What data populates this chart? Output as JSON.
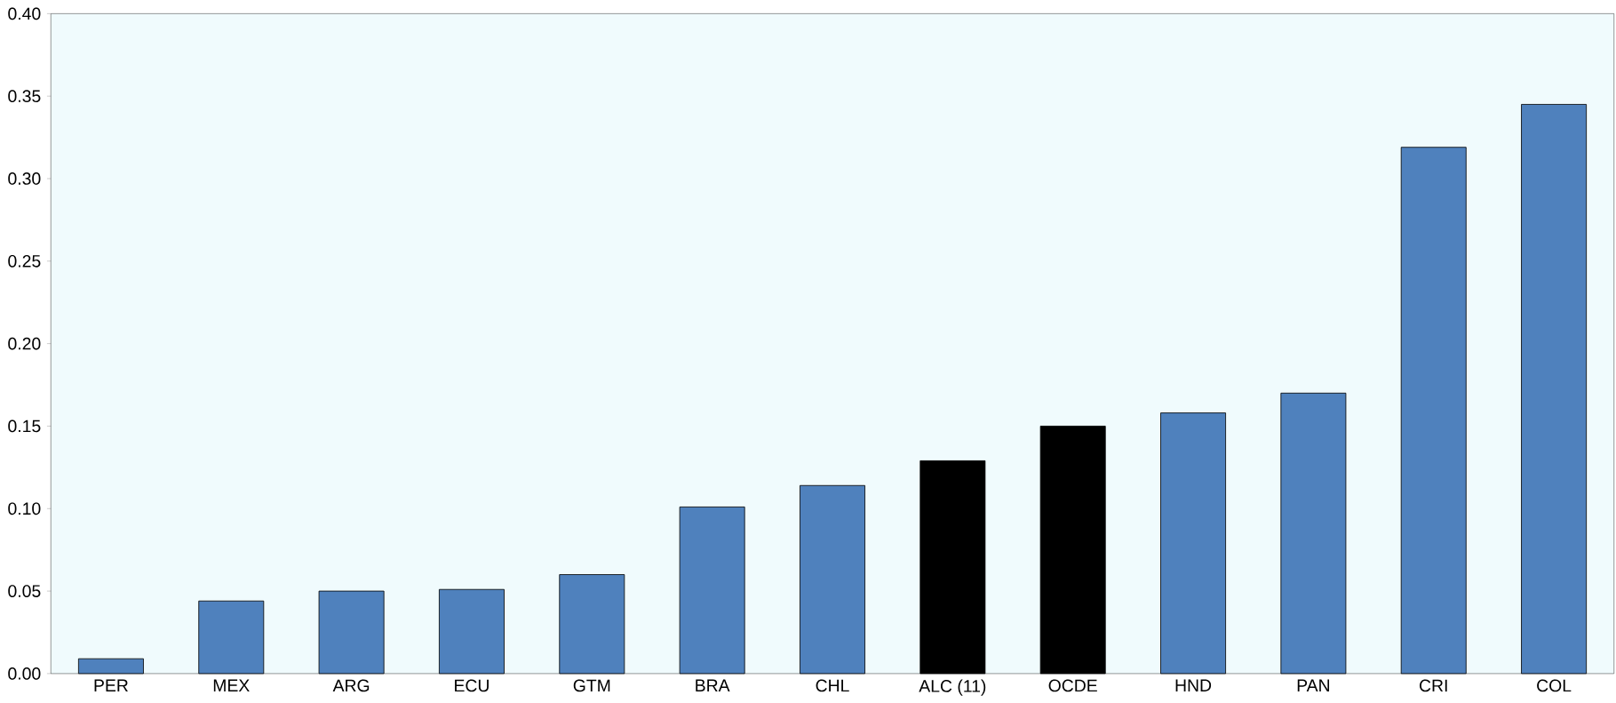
{
  "chart_data": {
    "type": "bar",
    "categories": [
      "PER",
      "MEX",
      "ARG",
      "ECU",
      "GTM",
      "BRA",
      "CHL",
      "ALC (11)",
      "OCDE",
      "HND",
      "PAN",
      "CRI",
      "COL"
    ],
    "values": [
      0.009,
      0.044,
      0.05,
      0.051,
      0.06,
      0.101,
      0.114,
      0.129,
      0.15,
      0.158,
      0.17,
      0.319,
      0.345
    ],
    "colors": [
      "#4f81bd",
      "#4f81bd",
      "#4f81bd",
      "#4f81bd",
      "#4f81bd",
      "#4f81bd",
      "#4f81bd",
      "#000000",
      "#000000",
      "#4f81bd",
      "#4f81bd",
      "#4f81bd",
      "#4f81bd"
    ],
    "ylim": [
      0,
      0.4
    ],
    "yticks": [
      {
        "value": 0,
        "label": "0.00"
      },
      {
        "value": 0.05,
        "label": "0.05"
      },
      {
        "value": 0.1,
        "label": "0.10"
      },
      {
        "value": 0.15,
        "label": "0.15"
      },
      {
        "value": 0.2,
        "label": "0.20"
      },
      {
        "value": 0.25,
        "label": "0.25"
      },
      {
        "value": 0.3,
        "label": "0.30"
      },
      {
        "value": 0.35,
        "label": "0.35"
      },
      {
        "value": 0.4,
        "label": "0.40"
      }
    ],
    "grid": false
  }
}
